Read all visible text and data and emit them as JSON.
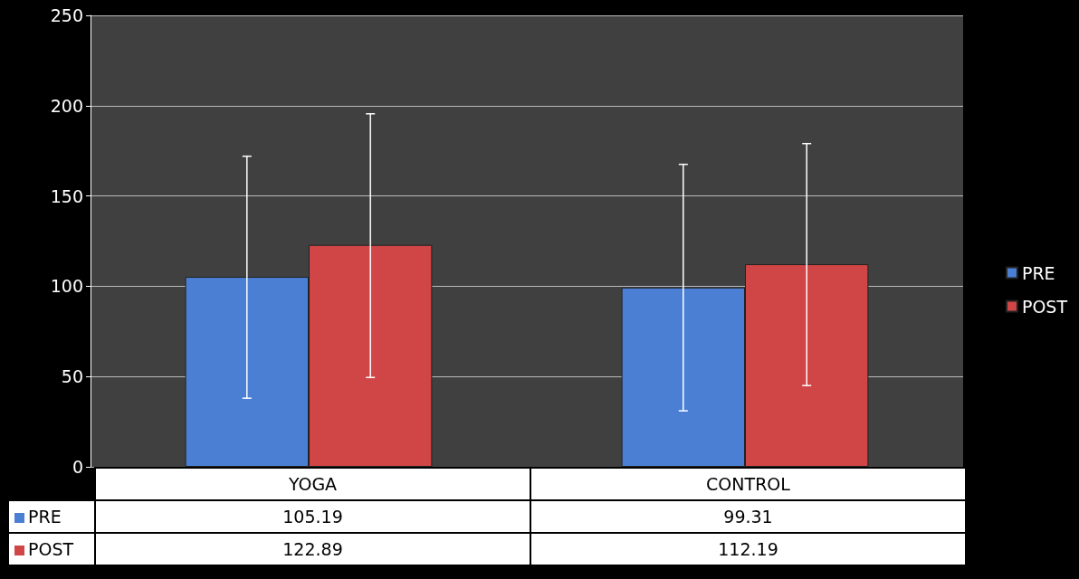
{
  "chart_data": {
    "type": "bar",
    "categories": [
      "YOGA",
      "CONTROL"
    ],
    "series": [
      {
        "name": "PRE",
        "color": "#4a7fd4",
        "values": [
          105.19,
          99.31
        ],
        "errors": [
          [
            38,
            172
          ],
          [
            31,
            167.5
          ]
        ]
      },
      {
        "name": "POST",
        "color": "#d04545",
        "values": [
          122.89,
          112.19
        ],
        "errors": [
          [
            49.5,
            195.5
          ],
          [
            45,
            179
          ]
        ]
      }
    ],
    "ylim": [
      0,
      250
    ],
    "yticks": [
      0,
      50,
      100,
      150,
      200,
      250
    ],
    "grid": "y",
    "legend": "right",
    "data_labels": true
  }
}
